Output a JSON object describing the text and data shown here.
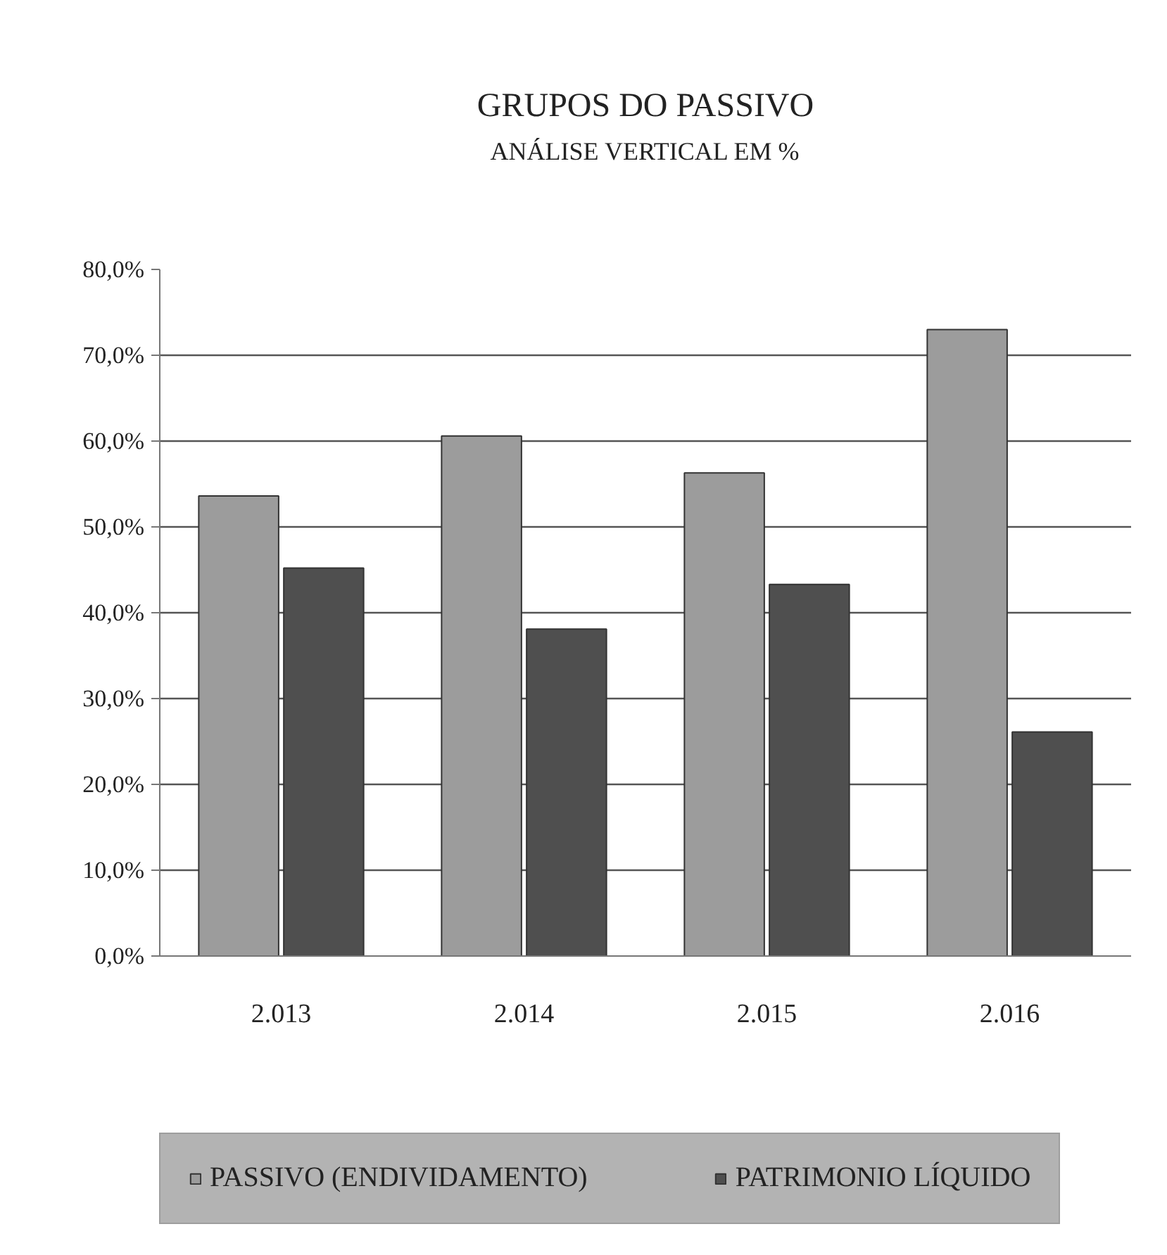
{
  "chart_data": {
    "type": "bar",
    "title": "GRUPOS DO PASSIVO",
    "subtitle": "ANÁLISE VERTICAL EM %",
    "categories": [
      "2.013",
      "2.014",
      "2.015",
      "2.016"
    ],
    "series": [
      {
        "name": "PASSIVO (ENDIVIDAMENTO)",
        "color": "#9c9c9c",
        "values": [
          53.6,
          60.6,
          56.3,
          73.0
        ]
      },
      {
        "name": "PATRIMONIO LÍQUIDO",
        "color": "#4f4f4f",
        "values": [
          45.2,
          38.1,
          43.3,
          26.1
        ]
      }
    ],
    "ylim": [
      0,
      80
    ],
    "yticks": [
      {
        "value": 0,
        "label": "0,0%"
      },
      {
        "value": 10,
        "label": "10,0%"
      },
      {
        "value": 20,
        "label": "20,0%"
      },
      {
        "value": 30,
        "label": "30,0%"
      },
      {
        "value": 40,
        "label": "40,0%"
      },
      {
        "value": 50,
        "label": "50,0%"
      },
      {
        "value": 60,
        "label": "60,0%"
      },
      {
        "value": 70,
        "label": "70,0%"
      },
      {
        "value": 80,
        "label": "80,0%"
      }
    ],
    "grid": "y",
    "legend": "bottom"
  }
}
